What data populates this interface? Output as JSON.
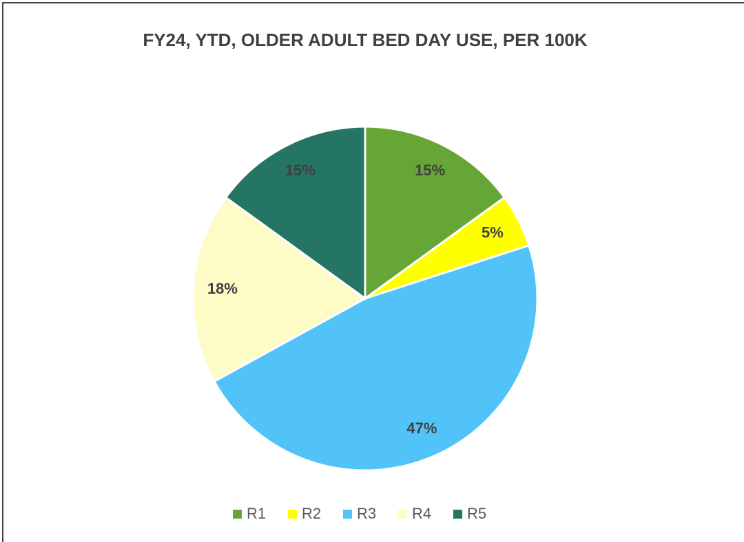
{
  "chart_data": {
    "type": "pie",
    "title": "FY24, YTD, OLDER ADULT BED DAY USE, PER 100K",
    "categories": [
      "R1",
      "R2",
      "R3",
      "R4",
      "R5"
    ],
    "values": [
      15,
      5,
      47,
      18,
      15
    ],
    "value_labels": [
      "15%",
      "5%",
      "47%",
      "18%",
      "15%"
    ],
    "colors": [
      "#65a637",
      "#ffff00",
      "#52c3f8",
      "#fdfbc6",
      "#247563"
    ],
    "legend": "bottom"
  }
}
